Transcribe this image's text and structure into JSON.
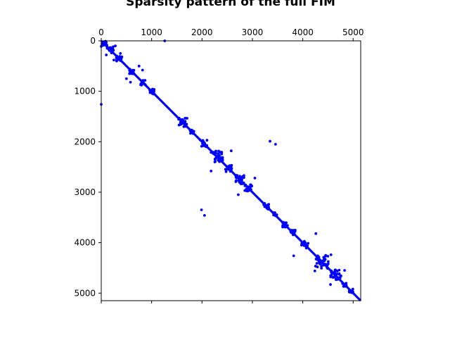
{
  "chart_data": {
    "type": "scatter",
    "title": "Sparsity pattern of the full FIM",
    "xlabel": "",
    "ylabel": "",
    "xlim": [
      0,
      5150
    ],
    "ylim": [
      5150,
      0
    ],
    "x_ticks": [
      {
        "value": 0,
        "label": "0"
      },
      {
        "value": 1000,
        "label": "1000"
      },
      {
        "value": 2000,
        "label": "2000"
      },
      {
        "value": 3000,
        "label": "3000"
      },
      {
        "value": 4000,
        "label": "4000"
      },
      {
        "value": 5000,
        "label": "5000"
      }
    ],
    "y_ticks": [
      {
        "value": 0,
        "label": "0"
      },
      {
        "value": 1000,
        "label": "1000"
      },
      {
        "value": 2000,
        "label": "2000"
      },
      {
        "value": 3000,
        "label": "3000"
      },
      {
        "value": 4000,
        "label": "4000"
      },
      {
        "value": 5000,
        "label": "5000"
      }
    ],
    "x_axis_position": "top",
    "grid": false,
    "marker_color": "#0000ff",
    "diagonal": {
      "from": 0,
      "to": 5150
    },
    "block_clusters": [
      {
        "center": 60,
        "halfwidth": 60
      },
      {
        "center": 180,
        "halfwidth": 70
      },
      {
        "center": 350,
        "halfwidth": 60
      },
      {
        "center": 610,
        "halfwidth": 50
      },
      {
        "center": 830,
        "halfwidth": 50
      },
      {
        "center": 1000,
        "halfwidth": 60
      },
      {
        "center": 1620,
        "halfwidth": 90
      },
      {
        "center": 1800,
        "halfwidth": 40
      },
      {
        "center": 2030,
        "halfwidth": 70
      },
      {
        "center": 2300,
        "halfwidth": 120
      },
      {
        "center": 2530,
        "halfwidth": 70
      },
      {
        "center": 2750,
        "halfwidth": 90
      },
      {
        "center": 2920,
        "halfwidth": 70
      },
      {
        "center": 3280,
        "halfwidth": 60
      },
      {
        "center": 3440,
        "halfwidth": 50
      },
      {
        "center": 3650,
        "halfwidth": 60
      },
      {
        "center": 3800,
        "halfwidth": 50
      },
      {
        "center": 4040,
        "halfwidth": 70
      },
      {
        "center": 4380,
        "halfwidth": 130
      },
      {
        "center": 4650,
        "halfwidth": 110
      },
      {
        "center": 4830,
        "halfwidth": 40
      },
      {
        "center": 4960,
        "halfwidth": 40
      }
    ],
    "points": [
      [
        1260,
        0
      ],
      [
        0,
        1260
      ],
      [
        3350,
        1990
      ],
      [
        3460,
        2050
      ],
      [
        1990,
        3350
      ],
      [
        2050,
        3460
      ],
      [
        4260,
        3820
      ],
      [
        3820,
        4260
      ],
      [
        100,
        280
      ],
      [
        280,
        100
      ],
      [
        250,
        380
      ],
      [
        380,
        250
      ],
      [
        500,
        750
      ],
      [
        750,
        500
      ],
      [
        820,
        580
      ],
      [
        580,
        820
      ],
      [
        2180,
        2580
      ],
      [
        2580,
        2180
      ],
      [
        2720,
        3050
      ],
      [
        3050,
        2720
      ],
      [
        4550,
        4830
      ],
      [
        4830,
        4550
      ],
      [
        4240,
        4560
      ],
      [
        4560,
        4240
      ]
    ]
  }
}
